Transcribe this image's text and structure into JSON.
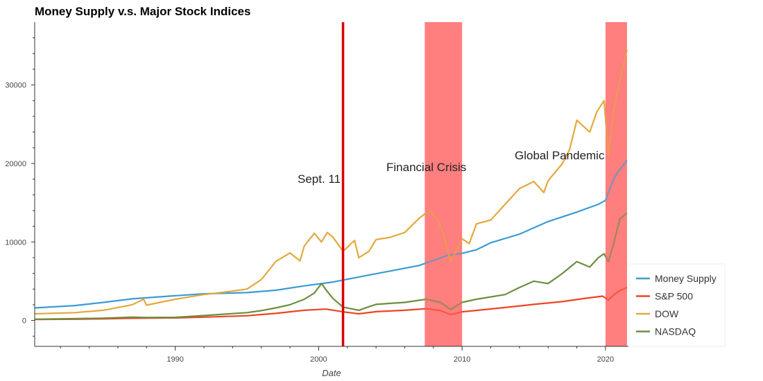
{
  "chart_data": {
    "type": "line",
    "title": "Money Supply v.s. Major Stock Indices",
    "xlabel": "Date",
    "ylabel": "",
    "xlim": [
      1980.2,
      2021.6
    ],
    "ylim": [
      -3300,
      38000
    ],
    "x_ticks": [
      1990,
      2000,
      2010,
      2020
    ],
    "y_ticks": [
      0,
      10000,
      20000,
      30000
    ],
    "grid": false,
    "legend_position": "bottom-right",
    "events": [
      {
        "type": "line",
        "label": "Sept. 11",
        "x": 2001.7,
        "color": "#dd0000"
      },
      {
        "type": "span",
        "label": "Financial Crisis",
        "x0": 2007.4,
        "x1": 2010.0,
        "color": "#ff7f7f"
      },
      {
        "type": "span",
        "label": "Global Pandemic",
        "x0": 2020.0,
        "x1": 2021.5,
        "color": "#ff7f7f"
      }
    ],
    "series": [
      {
        "name": "Money Supply",
        "color": "#3a9bd5",
        "points": [
          [
            1980.2,
            1600
          ],
          [
            1983,
            1900
          ],
          [
            1985,
            2300
          ],
          [
            1987,
            2750
          ],
          [
            1990,
            3150
          ],
          [
            1992,
            3400
          ],
          [
            1995,
            3550
          ],
          [
            1997,
            3850
          ],
          [
            1999,
            4400
          ],
          [
            2001,
            4900
          ],
          [
            2003,
            5600
          ],
          [
            2005,
            6300
          ],
          [
            2007,
            7000
          ],
          [
            2009,
            8300
          ],
          [
            2010,
            8550
          ],
          [
            2011,
            9000
          ],
          [
            2012,
            9900
          ],
          [
            2014,
            11000
          ],
          [
            2016,
            12600
          ],
          [
            2018,
            13800
          ],
          [
            2019.5,
            14800
          ],
          [
            2020,
            15300
          ],
          [
            2020.3,
            16800
          ],
          [
            2020.7,
            18500
          ],
          [
            2021.5,
            20400
          ]
        ]
      },
      {
        "name": "S&P 500",
        "color": "#ee4422",
        "points": [
          [
            1980.2,
            120
          ],
          [
            1983,
            160
          ],
          [
            1985,
            200
          ],
          [
            1987,
            280
          ],
          [
            1990,
            330
          ],
          [
            1992,
            420
          ],
          [
            1995,
            600
          ],
          [
            1997,
            900
          ],
          [
            1999,
            1300
          ],
          [
            2000.5,
            1450
          ],
          [
            2001.7,
            1100
          ],
          [
            2002.8,
            850
          ],
          [
            2004,
            1120
          ],
          [
            2006,
            1300
          ],
          [
            2007.5,
            1500
          ],
          [
            2008.5,
            1250
          ],
          [
            2009.2,
            750
          ],
          [
            2010,
            1100
          ],
          [
            2011,
            1280
          ],
          [
            2013,
            1650
          ],
          [
            2015,
            2050
          ],
          [
            2017,
            2400
          ],
          [
            2018.5,
            2800
          ],
          [
            2019.8,
            3100
          ],
          [
            2020.2,
            2600
          ],
          [
            2020.6,
            3300
          ],
          [
            2021,
            3800
          ],
          [
            2021.5,
            4200
          ]
        ]
      },
      {
        "name": "DOW",
        "color": "#e3a83b",
        "points": [
          [
            1980.2,
            850
          ],
          [
            1983,
            1000
          ],
          [
            1985,
            1300
          ],
          [
            1987,
            2000
          ],
          [
            1987.8,
            2700
          ],
          [
            1988,
            1950
          ],
          [
            1990,
            2700
          ],
          [
            1992,
            3300
          ],
          [
            1993,
            3500
          ],
          [
            1995,
            4000
          ],
          [
            1996,
            5200
          ],
          [
            1997,
            7500
          ],
          [
            1998,
            8600
          ],
          [
            1998.7,
            7600
          ],
          [
            1999,
            9500
          ],
          [
            1999.7,
            11100
          ],
          [
            2000.2,
            10000
          ],
          [
            2000.6,
            11200
          ],
          [
            2001,
            10600
          ],
          [
            2001.7,
            8800
          ],
          [
            2002.5,
            10200
          ],
          [
            2002.8,
            8000
          ],
          [
            2003.5,
            8800
          ],
          [
            2004,
            10300
          ],
          [
            2005,
            10600
          ],
          [
            2006,
            11200
          ],
          [
            2007,
            13000
          ],
          [
            2007.7,
            14000
          ],
          [
            2008.3,
            12800
          ],
          [
            2008.7,
            11000
          ],
          [
            2009.2,
            7500
          ],
          [
            2010,
            10400
          ],
          [
            2010.5,
            9800
          ],
          [
            2011,
            12300
          ],
          [
            2012,
            12800
          ],
          [
            2013,
            14800
          ],
          [
            2014,
            16800
          ],
          [
            2015,
            17700
          ],
          [
            2015.7,
            16300
          ],
          [
            2016,
            17800
          ],
          [
            2017,
            20000
          ],
          [
            2017.5,
            21800
          ],
          [
            2018,
            25500
          ],
          [
            2018.9,
            24000
          ],
          [
            2019.4,
            26600
          ],
          [
            2019.9,
            28000
          ],
          [
            2020.2,
            21000
          ],
          [
            2020.6,
            27000
          ],
          [
            2021,
            30600
          ],
          [
            2021.5,
            34500
          ]
        ]
      },
      {
        "name": "NASDAQ",
        "color": "#6b8e3e",
        "points": [
          [
            1980.2,
            150
          ],
          [
            1983,
            230
          ],
          [
            1985,
            290
          ],
          [
            1987,
            420
          ],
          [
            1988,
            380
          ],
          [
            1990,
            400
          ],
          [
            1991,
            500
          ],
          [
            1993,
            750
          ],
          [
            1995,
            1000
          ],
          [
            1996,
            1250
          ],
          [
            1997,
            1600
          ],
          [
            1998,
            2000
          ],
          [
            1999,
            2700
          ],
          [
            1999.7,
            3500
          ],
          [
            2000.2,
            4700
          ],
          [
            2000.6,
            3700
          ],
          [
            2001,
            2800
          ],
          [
            2001.7,
            1700
          ],
          [
            2002.8,
            1300
          ],
          [
            2003.5,
            1750
          ],
          [
            2004,
            2050
          ],
          [
            2006,
            2300
          ],
          [
            2007.5,
            2700
          ],
          [
            2008.5,
            2300
          ],
          [
            2009.2,
            1400
          ],
          [
            2010,
            2300
          ],
          [
            2011,
            2700
          ],
          [
            2013,
            3300
          ],
          [
            2014,
            4200
          ],
          [
            2015,
            5000
          ],
          [
            2016,
            4700
          ],
          [
            2017,
            6000
          ],
          [
            2018,
            7500
          ],
          [
            2018.9,
            6800
          ],
          [
            2019.5,
            8000
          ],
          [
            2019.9,
            8500
          ],
          [
            2020.2,
            7500
          ],
          [
            2020.6,
            10000
          ],
          [
            2021,
            12900
          ],
          [
            2021.5,
            13700
          ]
        ]
      }
    ]
  }
}
